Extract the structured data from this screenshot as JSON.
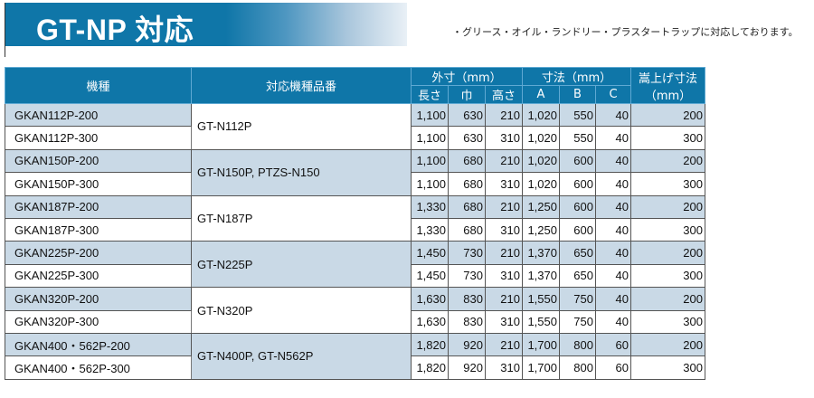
{
  "header": {
    "title": "GT-NP 対応",
    "note": "・グリース・オイル・ランドリー・プラスタートラップに対応しております。"
  },
  "table": {
    "headers": {
      "model": "機種",
      "compatible": "対応機種品番",
      "outer_group": "外寸（mm）",
      "outer_length": "長さ",
      "outer_width": "巾",
      "outer_height": "高さ",
      "dim_group": "寸法（mm）",
      "dim_a": "A",
      "dim_b": "B",
      "dim_c": "C",
      "raise_line1": "嵩上げ寸法",
      "raise_line2": "（mm）"
    },
    "groups": [
      {
        "compatible": "GT-N112P",
        "rows": [
          {
            "model": "GKAN112P-200",
            "length": "1,100",
            "width": "630",
            "height": "210",
            "a": "1,020",
            "b": "550",
            "c": "40",
            "raise": "200"
          },
          {
            "model": "GKAN112P-300",
            "length": "1,100",
            "width": "630",
            "height": "310",
            "a": "1,020",
            "b": "550",
            "c": "40",
            "raise": "300"
          }
        ]
      },
      {
        "compatible": "GT-N150P, PTZS-N150",
        "rows": [
          {
            "model": "GKAN150P-200",
            "length": "1,100",
            "width": "680",
            "height": "210",
            "a": "1,020",
            "b": "600",
            "c": "40",
            "raise": "200"
          },
          {
            "model": "GKAN150P-300",
            "length": "1,100",
            "width": "680",
            "height": "310",
            "a": "1,020",
            "b": "600",
            "c": "40",
            "raise": "300"
          }
        ]
      },
      {
        "compatible": "GT-N187P",
        "rows": [
          {
            "model": "GKAN187P-200",
            "length": "1,330",
            "width": "680",
            "height": "210",
            "a": "1,250",
            "b": "600",
            "c": "40",
            "raise": "200"
          },
          {
            "model": "GKAN187P-300",
            "length": "1,330",
            "width": "680",
            "height": "310",
            "a": "1,250",
            "b": "600",
            "c": "40",
            "raise": "300"
          }
        ]
      },
      {
        "compatible": "GT-N225P",
        "rows": [
          {
            "model": "GKAN225P-200",
            "length": "1,450",
            "width": "730",
            "height": "210",
            "a": "1,370",
            "b": "650",
            "c": "40",
            "raise": "200"
          },
          {
            "model": "GKAN225P-300",
            "length": "1,450",
            "width": "730",
            "height": "310",
            "a": "1,370",
            "b": "650",
            "c": "40",
            "raise": "300"
          }
        ]
      },
      {
        "compatible": "GT-N320P",
        "rows": [
          {
            "model": "GKAN320P-200",
            "length": "1,630",
            "width": "830",
            "height": "210",
            "a": "1,550",
            "b": "750",
            "c": "40",
            "raise": "200"
          },
          {
            "model": "GKAN320P-300",
            "length": "1,630",
            "width": "830",
            "height": "310",
            "a": "1,550",
            "b": "750",
            "c": "40",
            "raise": "300"
          }
        ]
      },
      {
        "compatible": "GT-N400P, GT-N562P",
        "rows": [
          {
            "model": "GKAN400・562P-200",
            "length": "1,820",
            "width": "920",
            "height": "210",
            "a": "1,700",
            "b": "800",
            "c": "60",
            "raise": "200"
          },
          {
            "model": "GKAN400・562P-300",
            "length": "1,820",
            "width": "920",
            "height": "310",
            "a": "1,700",
            "b": "800",
            "c": "60",
            "raise": "300"
          }
        ]
      }
    ]
  }
}
